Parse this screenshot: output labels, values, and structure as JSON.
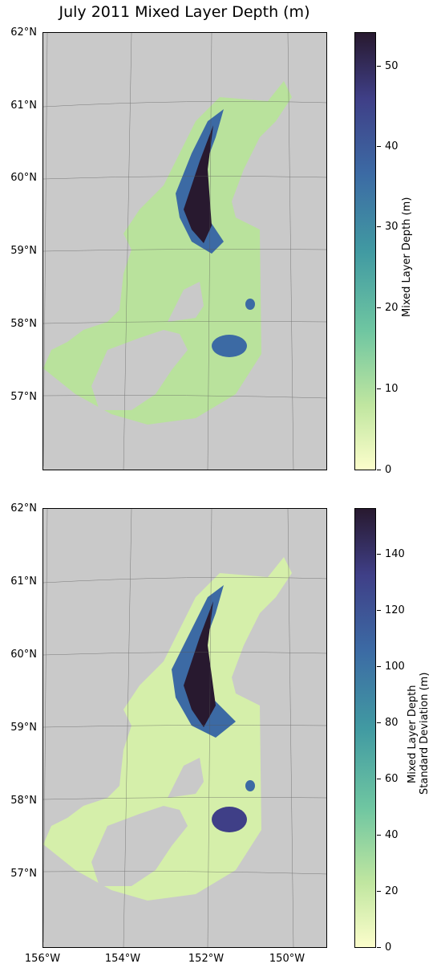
{
  "title": "July 2011 Mixed Layer Depth (m)",
  "latitude_labels": [
    "62°N",
    "61°N",
    "60°N",
    "59°N",
    "58°N",
    "57°N"
  ],
  "longitude_labels": [
    "156°W",
    "154°W",
    "152°W",
    "150°W"
  ],
  "maps": [
    {
      "name": "mixed-layer-depth",
      "colorbar_label": "Mixed Layer Depth (m)",
      "colorbar_ticks": [
        "0",
        "10",
        "20",
        "30",
        "40",
        "50"
      ],
      "colorbar_range": [
        0,
        54
      ]
    },
    {
      "name": "mixed-layer-depth-std",
      "colorbar_label_line1": "Mixed Layer Depth",
      "colorbar_label_line2": "Standard Deviation (m)",
      "colorbar_ticks": [
        "0",
        "20",
        "40",
        "60",
        "80",
        "100",
        "120",
        "140"
      ],
      "colorbar_range": [
        0,
        156
      ]
    }
  ],
  "colors": {
    "land": "#c9c9c9",
    "colormap": [
      "#fdfecc",
      "#c0e6a0",
      "#6fc6a1",
      "#419aa2",
      "#3c6aa4",
      "#3f3f87",
      "#28192f"
    ]
  }
}
